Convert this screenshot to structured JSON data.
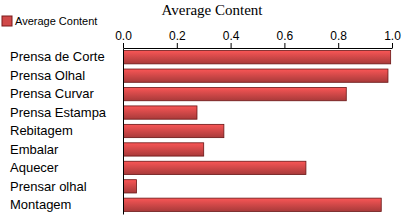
{
  "chart_data": {
    "type": "bar",
    "title": "Average Content",
    "orientation": "horizontal",
    "categories": [
      "Prensa de Corte",
      "Prensa Olhal",
      "Prensa Curvar",
      "Prensa Estampa",
      "Rebitagem",
      "Embalar",
      "Aquecer",
      "Prensar olhal",
      "Montagem"
    ],
    "series": [
      {
        "name": "Average Content",
        "color": "#d04848",
        "values": [
          0.995,
          0.985,
          0.83,
          0.275,
          0.375,
          0.3,
          0.68,
          0.05,
          0.96
        ]
      }
    ],
    "xlim": [
      0,
      1
    ],
    "xticks": [
      {
        "value": 0,
        "label": "0.0"
      },
      {
        "value": 0.2,
        "label": "0.2"
      },
      {
        "value": 0.4,
        "label": "0.4"
      },
      {
        "value": 0.6,
        "label": "0.6"
      },
      {
        "value": 0.8,
        "label": "0.8"
      },
      {
        "value": 1,
        "label": "1.0"
      }
    ],
    "grid": false,
    "legend": "top-left"
  }
}
